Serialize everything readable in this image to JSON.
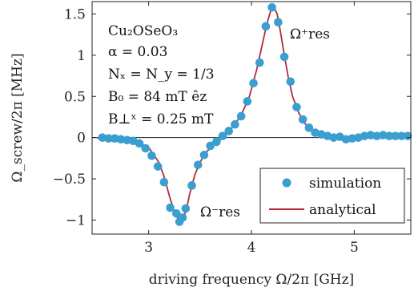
{
  "chart_data": {
    "type": "scatter",
    "title": "",
    "xlabel": "driving frequency Ω/2π [GHz]",
    "ylabel": "Ω_screw/2π [MHz]",
    "xlim": [
      2.45,
      5.55
    ],
    "ylim": [
      -1.17,
      1.65
    ],
    "x_ticks": [
      3,
      4,
      5
    ],
    "y_ticks": [
      -1,
      -0.5,
      0,
      0.5,
      1,
      1.5
    ],
    "x_tick_labels": [
      "3",
      "4",
      "5"
    ],
    "y_tick_labels": [
      "−1",
      "−0.5",
      "0",
      "0.5",
      "1",
      "1.5"
    ],
    "grid": false,
    "zero_line": true,
    "legend_position": "bottom-right",
    "annotations": {
      "material": "Cu₂OSeO₃",
      "alpha": "α = 0.03",
      "demag": "Nₓ = N_y = 1/3",
      "field": "B₀ = 84 mT êz",
      "bperp": "B⊥ˣ = 0.25 mT",
      "res_plus": "Ω⁺res",
      "res_minus": "Ω⁻res"
    },
    "series": [
      {
        "name": "simulation",
        "kind": "scatter",
        "color": "#3a9fcf",
        "x": [
          2.55,
          2.61,
          2.67,
          2.73,
          2.79,
          2.85,
          2.91,
          2.97,
          3.03,
          3.09,
          3.15,
          3.21,
          3.27,
          3.3,
          3.33,
          3.36,
          3.42,
          3.48,
          3.54,
          3.6,
          3.66,
          3.72,
          3.78,
          3.84,
          3.9,
          3.96,
          4.02,
          4.08,
          4.14,
          4.2,
          4.26,
          4.32,
          4.38,
          4.44,
          4.5,
          4.56,
          4.62,
          4.68,
          4.74,
          4.8,
          4.86,
          4.92,
          4.98,
          5.04,
          5.1,
          5.16,
          5.22,
          5.28,
          5.34,
          5.4,
          5.46,
          5.52
        ],
        "y": [
          0.0,
          -0.01,
          -0.01,
          -0.02,
          -0.03,
          -0.04,
          -0.07,
          -0.13,
          -0.22,
          -0.35,
          -0.54,
          -0.85,
          -0.92,
          -1.02,
          -0.97,
          -0.86,
          -0.58,
          -0.33,
          -0.21,
          -0.1,
          -0.05,
          0.02,
          0.08,
          0.16,
          0.26,
          0.44,
          0.66,
          0.91,
          1.35,
          1.58,
          1.4,
          0.98,
          0.68,
          0.37,
          0.22,
          0.12,
          0.06,
          0.04,
          0.02,
          0.0,
          0.01,
          -0.02,
          -0.01,
          0.0,
          0.02,
          0.03,
          0.02,
          0.03,
          0.02,
          0.02,
          0.02,
          0.02
        ]
      },
      {
        "name": "analytical",
        "kind": "line",
        "color": "#b22a3f",
        "x": [
          2.5,
          2.7,
          2.9,
          3.0,
          3.1,
          3.15,
          3.2,
          3.25,
          3.28,
          3.31,
          3.34,
          3.37,
          3.4,
          3.45,
          3.5,
          3.55,
          3.62,
          3.7,
          3.8,
          3.9,
          3.98,
          4.05,
          4.1,
          4.15,
          4.19,
          4.22,
          4.25,
          4.28,
          4.32,
          4.36,
          4.4,
          4.46,
          4.52,
          4.6,
          4.7,
          4.8,
          4.9,
          5.0,
          5.2,
          5.5
        ],
        "y": [
          -0.005,
          -0.02,
          -0.06,
          -0.12,
          -0.3,
          -0.47,
          -0.7,
          -0.9,
          -0.97,
          -1.0,
          -0.97,
          -0.86,
          -0.68,
          -0.45,
          -0.3,
          -0.19,
          -0.1,
          -0.02,
          0.1,
          0.27,
          0.5,
          0.82,
          1.1,
          1.38,
          1.55,
          1.58,
          1.5,
          1.3,
          1.0,
          0.72,
          0.5,
          0.3,
          0.17,
          0.08,
          0.03,
          0.01,
          0.0,
          0.005,
          0.015,
          0.02
        ]
      }
    ]
  }
}
